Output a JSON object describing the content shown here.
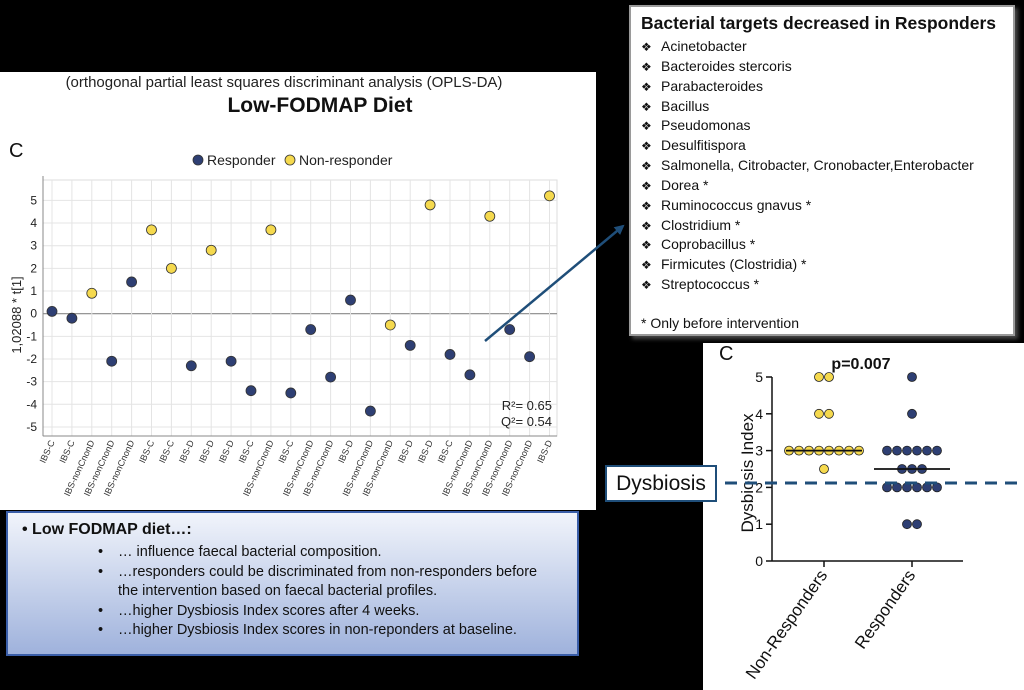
{
  "opls": {
    "subtitle": "(orthogonal partial least squares discriminant analysis (OPLS-DA)",
    "title": "Low-FODMAP Diet",
    "panel_letter": "C"
  },
  "targets_box": {
    "title": "Bacterial targets decreased in Responders",
    "bullet_symbol": "❖",
    "items": [
      "Acinetobacter",
      "Bacteroides stercoris",
      "Parabacteroides",
      "Bacillus",
      "Pseudomonas",
      "Desulfitispora",
      "Salmonella, Citrobacter, Cronobacter,Enterobacter",
      "Dorea *",
      "Ruminococcus gnavus *",
      "Clostridium  *",
      "Coprobacillus *",
      "Firmicutes (Clostridia) *",
      "Streptococcus *"
    ],
    "note": "* Only before intervention"
  },
  "dysbiosis_label": "Dysbiosis",
  "summary": {
    "heading": "Low FODMAP diet…:",
    "items": [
      "… influence faecal bacterial composition.",
      "…responders could be discriminated from non-responders before the  intervention based on faecal bacterial profiles.",
      "…higher Dysbiosis Index scores after 4 weeks.",
      "…higher Dysbiosis Index scores in non-reponders at baseline."
    ]
  },
  "colors": {
    "responder": "#2e3f73",
    "non_responder": "#f5d94e",
    "arrow": "#1f4e79",
    "summary_border": "#3a5ea8"
  },
  "chart_data": [
    {
      "type": "scatter",
      "title": "Low-FODMAP Diet",
      "ylabel": "1,02088 * t[1]",
      "ylim": [
        -5.4,
        5.9
      ],
      "yticks": [
        -5,
        -4,
        -3,
        -2,
        -1,
        0,
        1,
        2,
        3,
        4,
        5
      ],
      "legend": [
        "Responder",
        "Non-responder"
      ],
      "legend_position": "top-center",
      "categories": [
        "IBS-C",
        "IBS-C",
        "IBS-nonCnonD",
        "IBS-nonCnonD",
        "IBS-nonCnonD",
        "IBS-C",
        "IBS-C",
        "IBS-D",
        "IBS-D",
        "IBS-D",
        "IBS-C",
        "IBS-nonCnonD",
        "IBS-C",
        "IBS-nonCnonD",
        "IBS-nonCnonD",
        "IBS-D",
        "IBS-nonCnonD",
        "IBS-nonCnonD",
        "IBS-D",
        "IBS-D",
        "IBS-C",
        "IBS-nonCnonD",
        "IBS-nonCnonD",
        "IBS-nonCnonD",
        "IBS-nonCnonD",
        "IBS-D"
      ],
      "series": [
        {
          "name": "Responder",
          "points": [
            {
              "x": 0,
              "y": 0.1
            },
            {
              "x": 1,
              "y": -0.2
            },
            {
              "x": 3,
              "y": -2.1
            },
            {
              "x": 4,
              "y": 1.4
            },
            {
              "x": 7,
              "y": -2.3
            },
            {
              "x": 9,
              "y": -2.1
            },
            {
              "x": 10,
              "y": -3.4
            },
            {
              "x": 12,
              "y": -3.5
            },
            {
              "x": 13,
              "y": -0.7
            },
            {
              "x": 14,
              "y": -2.8
            },
            {
              "x": 15,
              "y": 0.6
            },
            {
              "x": 16,
              "y": -4.3
            },
            {
              "x": 18,
              "y": -1.4
            },
            {
              "x": 20,
              "y": -1.8
            },
            {
              "x": 21,
              "y": -2.7
            },
            {
              "x": 23,
              "y": -0.7
            },
            {
              "x": 24,
              "y": -1.9
            }
          ]
        },
        {
          "name": "Non-responder",
          "points": [
            {
              "x": 2,
              "y": 0.9
            },
            {
              "x": 5,
              "y": 3.7
            },
            {
              "x": 6,
              "y": 2.0
            },
            {
              "x": 8,
              "y": 2.8
            },
            {
              "x": 11,
              "y": 3.7
            },
            {
              "x": 17,
              "y": -0.5
            },
            {
              "x": 19,
              "y": 4.8
            },
            {
              "x": 22,
              "y": 4.3
            },
            {
              "x": 25,
              "y": 5.2
            }
          ]
        }
      ],
      "annotations": [
        "R²= 0.65",
        "Q²= 0.54"
      ]
    },
    {
      "type": "scatter",
      "panel_letter": "C",
      "title": "p=0.007",
      "ylabel": "Dysbiosis Index",
      "ylim": [
        0,
        5
      ],
      "yticks": [
        0,
        1,
        2,
        3,
        4,
        5
      ],
      "categories": [
        "Non-Responders",
        "Responders"
      ],
      "dysbiosis_threshold": 2.1,
      "series": [
        {
          "name": "Non-Responders",
          "values": [
            5,
            5,
            4,
            4,
            3,
            3,
            3,
            3,
            3,
            3,
            3,
            3,
            2.5
          ],
          "median": 3
        },
        {
          "name": "Responders",
          "values": [
            5,
            4,
            3,
            3,
            3,
            3,
            3,
            3,
            2.5,
            2.5,
            2.5,
            2,
            2,
            2,
            2,
            2,
            2,
            1,
            1
          ],
          "median": 2.5
        }
      ]
    }
  ]
}
